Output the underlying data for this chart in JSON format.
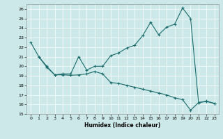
{
  "xlabel": "Humidex (Indice chaleur)",
  "xlim": [
    -0.5,
    23.5
  ],
  "ylim": [
    15,
    26.5
  ],
  "yticks": [
    15,
    16,
    17,
    18,
    19,
    20,
    21,
    22,
    23,
    24,
    25,
    26
  ],
  "xticks": [
    0,
    1,
    2,
    3,
    4,
    5,
    6,
    7,
    8,
    9,
    10,
    11,
    12,
    13,
    14,
    15,
    16,
    17,
    18,
    19,
    20,
    21,
    22,
    23
  ],
  "background_color": "#cce8e8",
  "line_color": "#1a6b6b",
  "upper_x": [
    0,
    1,
    2,
    3,
    4,
    5,
    6,
    7,
    8,
    9,
    10,
    11,
    12,
    13,
    14,
    15,
    16,
    17,
    18,
    19,
    20,
    21,
    22,
    23
  ],
  "upper_y": [
    22.5,
    21.0,
    20.0,
    19.1,
    19.2,
    19.2,
    21.0,
    19.6,
    20.0,
    20.0,
    21.1,
    21.4,
    21.9,
    22.2,
    23.2,
    24.6,
    23.3,
    24.1,
    24.4,
    26.1,
    25.0,
    16.2,
    16.35,
    16.1
  ],
  "lower_x": [
    1,
    2,
    3,
    4,
    5,
    6,
    7,
    8,
    9,
    10,
    11,
    12,
    13,
    14,
    15,
    16,
    17,
    18,
    19,
    20,
    21,
    22,
    23
  ],
  "lower_y": [
    21.0,
    19.9,
    19.1,
    19.1,
    19.05,
    19.1,
    19.2,
    19.45,
    19.2,
    18.3,
    18.2,
    18.0,
    17.8,
    17.6,
    17.4,
    17.2,
    17.0,
    16.7,
    16.5,
    15.4,
    16.2,
    16.3,
    16.1
  ]
}
